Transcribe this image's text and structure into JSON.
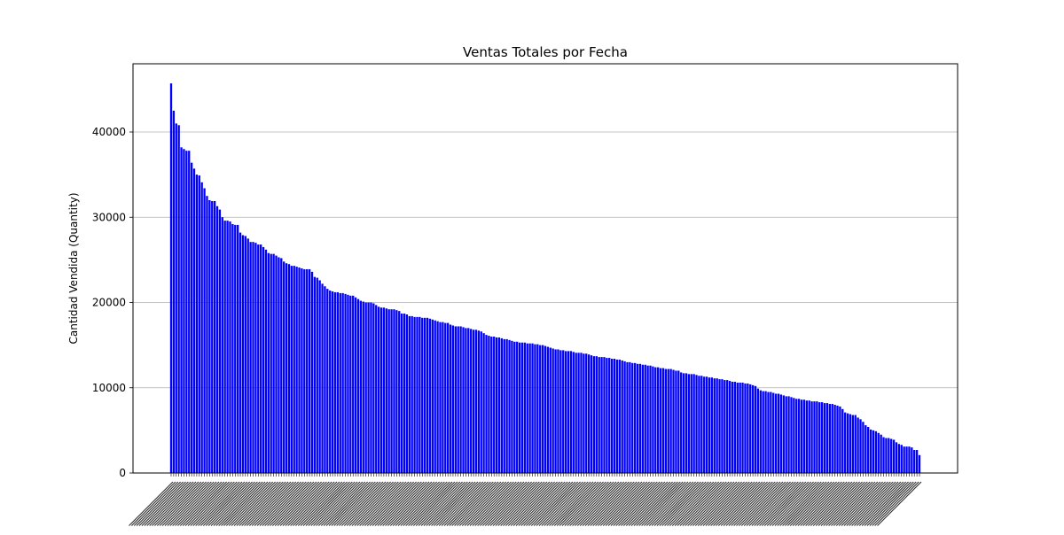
{
  "chart_data": {
    "type": "bar",
    "title": "Ventas Totales por Fecha",
    "xlabel": "",
    "ylabel": "Cantidad Vendida (Quantity)",
    "ylim": [
      0,
      48000
    ],
    "yticks": [
      0,
      10000,
      20000,
      30000,
      40000
    ],
    "grid": "y",
    "bar_color": "#0000ff",
    "x_tick_labels_legible": false,
    "values": [
      45700,
      42500,
      41000,
      40800,
      38200,
      38000,
      37800,
      37800,
      36400,
      35700,
      35000,
      34900,
      34100,
      33400,
      32500,
      32000,
      31900,
      31900,
      31300,
      30900,
      30000,
      29600,
      29600,
      29500,
      29200,
      29100,
      29100,
      28200,
      27900,
      27800,
      27500,
      27100,
      27100,
      27000,
      26800,
      26800,
      26500,
      26200,
      25800,
      25700,
      25700,
      25500,
      25300,
      25200,
      24800,
      24600,
      24500,
      24300,
      24300,
      24200,
      24100,
      24000,
      23900,
      23900,
      23900,
      23600,
      23000,
      22900,
      22600,
      22200,
      21900,
      21600,
      21400,
      21300,
      21200,
      21200,
      21100,
      21100,
      21000,
      20900,
      20800,
      20800,
      20600,
      20400,
      20200,
      20100,
      20000,
      20000,
      20000,
      19900,
      19700,
      19500,
      19400,
      19400,
      19300,
      19200,
      19200,
      19200,
      19100,
      19000,
      18700,
      18700,
      18600,
      18400,
      18400,
      18300,
      18300,
      18300,
      18200,
      18200,
      18200,
      18100,
      18000,
      17900,
      17800,
      17700,
      17700,
      17600,
      17600,
      17400,
      17300,
      17200,
      17200,
      17200,
      17100,
      17000,
      17000,
      16900,
      16800,
      16800,
      16700,
      16600,
      16400,
      16200,
      16100,
      16000,
      16000,
      15900,
      15900,
      15800,
      15700,
      15700,
      15600,
      15500,
      15400,
      15400,
      15300,
      15300,
      15300,
      15200,
      15200,
      15200,
      15100,
      15100,
      15000,
      15000,
      14900,
      14800,
      14700,
      14600,
      14500,
      14500,
      14400,
      14400,
      14300,
      14300,
      14300,
      14200,
      14100,
      14100,
      14100,
      14000,
      14000,
      13900,
      13800,
      13700,
      13700,
      13600,
      13600,
      13600,
      13500,
      13500,
      13400,
      13400,
      13300,
      13300,
      13200,
      13100,
      13000,
      13000,
      12900,
      12900,
      12800,
      12800,
      12700,
      12700,
      12600,
      12600,
      12500,
      12400,
      12400,
      12300,
      12300,
      12200,
      12200,
      12200,
      12100,
      12000,
      12000,
      11800,
      11700,
      11700,
      11600,
      11600,
      11600,
      11500,
      11400,
      11400,
      11300,
      11300,
      11200,
      11200,
      11100,
      11100,
      11000,
      11000,
      10900,
      10900,
      10800,
      10700,
      10700,
      10600,
      10600,
      10600,
      10500,
      10500,
      10400,
      10300,
      10200,
      9900,
      9700,
      9600,
      9600,
      9500,
      9500,
      9400,
      9300,
      9300,
      9200,
      9100,
      9000,
      9000,
      8900,
      8800,
      8700,
      8700,
      8600,
      8600,
      8500,
      8500,
      8400,
      8400,
      8400,
      8300,
      8300,
      8200,
      8200,
      8100,
      8100,
      8000,
      7900,
      7800,
      7500,
      7100,
      7000,
      6900,
      6800,
      6800,
      6500,
      6300,
      6000,
      5600,
      5400,
      5100,
      5000,
      4900,
      4700,
      4500,
      4200,
      4100,
      4100,
      4000,
      3900,
      3600,
      3400,
      3300,
      3100,
      3100,
      3100,
      3000,
      2700,
      2700,
      2100
    ]
  }
}
